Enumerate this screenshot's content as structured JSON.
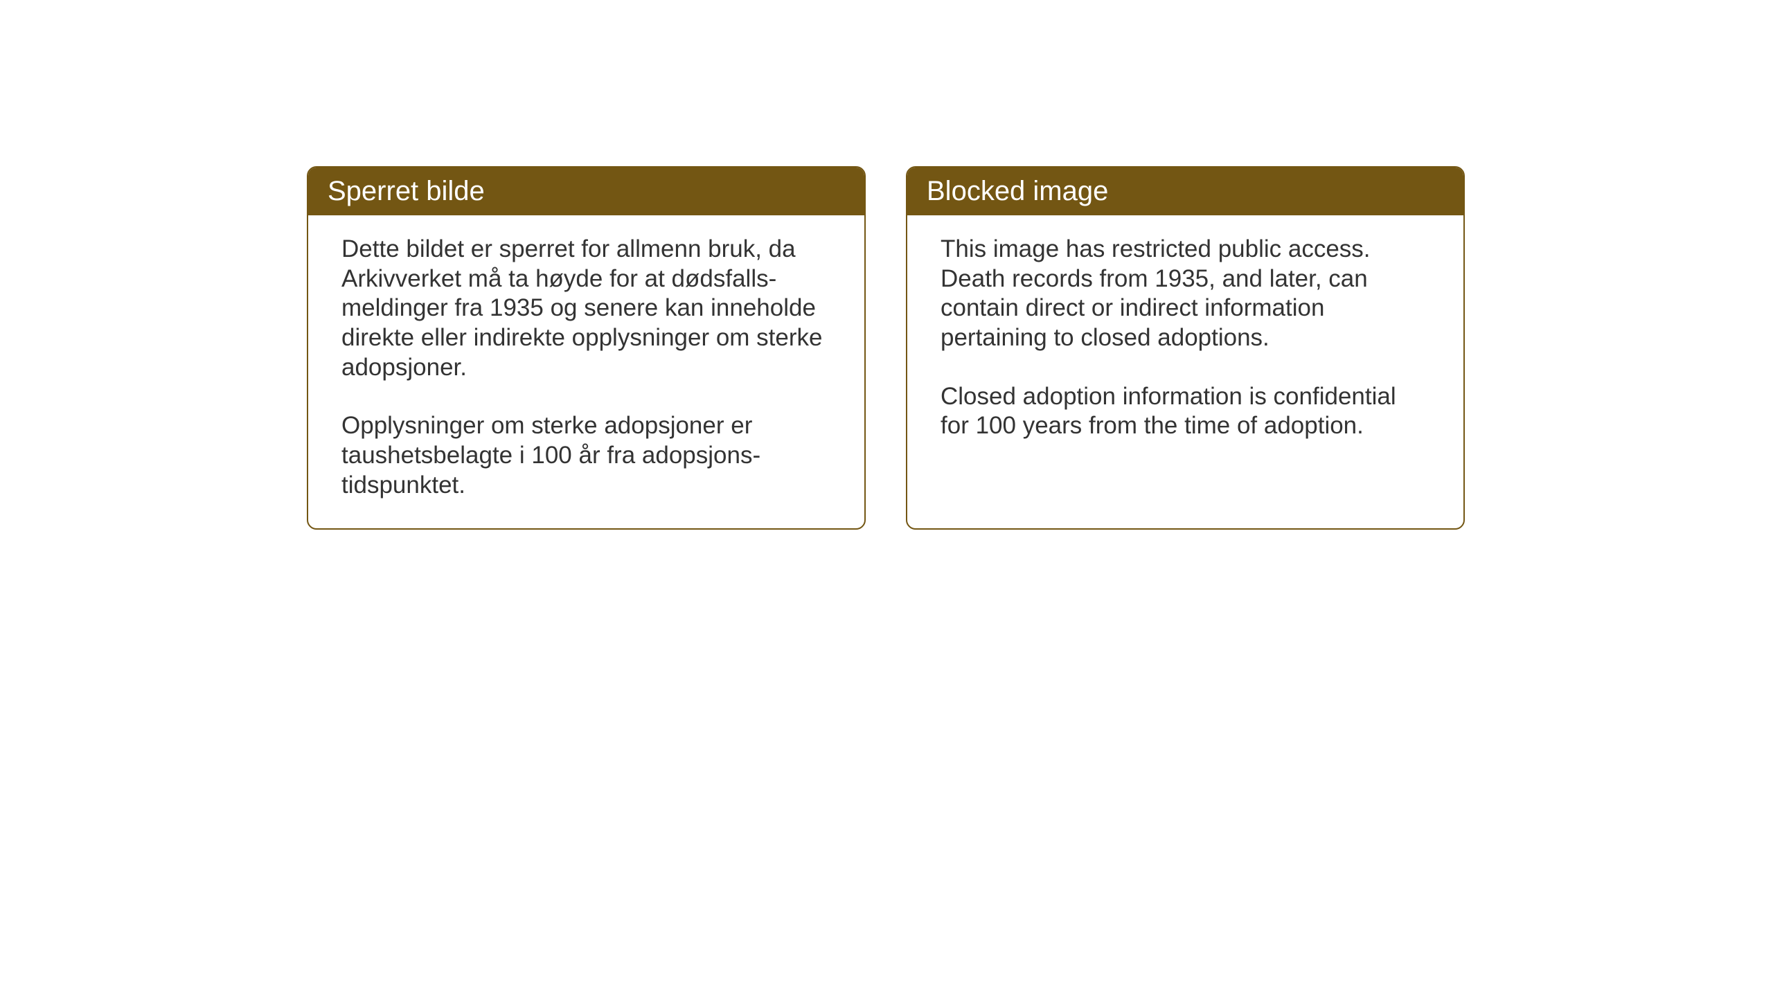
{
  "colors": {
    "header_bg": "#735613",
    "header_text": "#ffffff",
    "border": "#735613",
    "body_text": "#333333",
    "page_bg": "#ffffff"
  },
  "typography": {
    "header_fontsize": 40,
    "body_fontsize": 35
  },
  "cards": {
    "left": {
      "title": "Sperret bilde",
      "paragraph1": "Dette bildet er sperret for allmenn bruk, da Arkivverket må ta høyde for at dødsfalls­meldinger fra 1935 og senere kan inneholde direkte eller indirekte opplysninger om sterke adopsjoner.",
      "paragraph2": "Opplysninger om sterke adopsjoner er taushetsbelagte i 100 år fra adopsjons­tidspunktet."
    },
    "right": {
      "title": "Blocked image",
      "paragraph1": "This image has restricted public access. Death records from 1935, and later, can contain direct or indirect information pertaining to closed adoptions.",
      "paragraph2": "Closed adoption information is confidential for 100 years from the time of adoption."
    }
  }
}
